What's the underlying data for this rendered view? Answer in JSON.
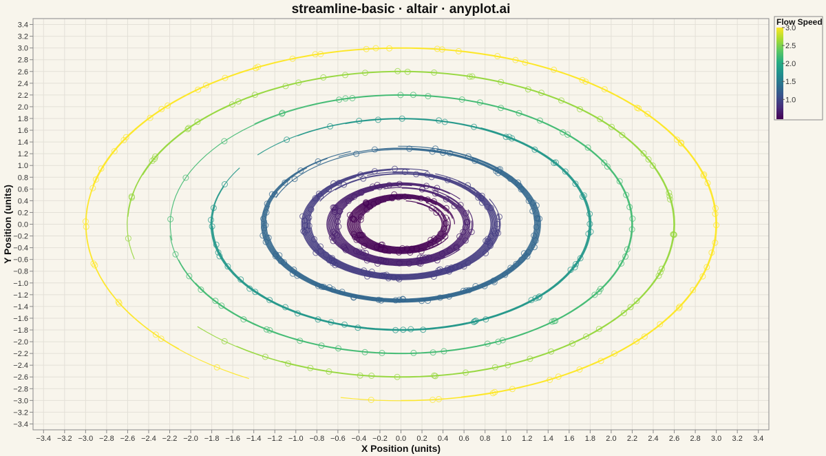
{
  "chart_data": {
    "type": "line",
    "title": "streamline-basic · altair · anyplot.ai",
    "xlabel": "X Position (units)",
    "ylabel": "Y Position (units)",
    "xlim": [
      -3.5,
      3.5
    ],
    "ylim": [
      -3.5,
      3.5
    ],
    "x_ticks": [
      -3.4,
      -3.2,
      -3.0,
      -2.8,
      -2.6,
      -2.4,
      -2.2,
      -2.0,
      -1.8,
      -1.6,
      -1.4,
      -1.2,
      -1.0,
      -0.8,
      -0.6,
      -0.4,
      -0.2,
      0.0,
      0.2,
      0.4,
      0.6,
      0.8,
      1.0,
      1.2,
      1.4,
      1.6,
      1.8,
      2.0,
      2.2,
      2.4,
      2.6,
      2.8,
      3.0,
      3.2,
      3.4
    ],
    "y_ticks": [
      -3.4,
      -3.2,
      -3.0,
      -2.8,
      -2.6,
      -2.4,
      -2.2,
      -2.0,
      -1.8,
      -1.6,
      -1.4,
      -1.2,
      -1.0,
      -0.8,
      -0.6,
      -0.4,
      -0.2,
      0.0,
      0.2,
      0.4,
      0.6,
      0.8,
      1.0,
      1.2,
      1.4,
      1.6,
      1.8,
      2.0,
      2.2,
      2.4,
      2.6,
      2.8,
      3.0,
      3.2,
      3.4
    ],
    "grid": true,
    "color_encoding": "flow speed (sqrt(x^2 + y^2))",
    "colorscale": "viridis",
    "colorscale_stops": [
      "#440154",
      "#472c7a",
      "#3b518b",
      "#2c718e",
      "#21908d",
      "#27ad81",
      "#5cc863",
      "#aadc32",
      "#fde725"
    ],
    "series": [
      {
        "radius": 0.45,
        "speed": 0.45,
        "strands": 13,
        "spacing": 0.01
      },
      {
        "radius": 0.65,
        "speed": 0.65,
        "strands": 12,
        "spacing": 0.01
      },
      {
        "radius": 0.9,
        "speed": 0.9,
        "strands": 11,
        "spacing": 0.009
      },
      {
        "radius": 1.3,
        "speed": 1.3,
        "strands": 8,
        "spacing": 0.008
      },
      {
        "radius": 1.8,
        "speed": 1.8,
        "strands": 4,
        "spacing": 0.006
      },
      {
        "radius": 2.2,
        "speed": 2.2,
        "strands": 3,
        "spacing": 0.005
      },
      {
        "radius": 2.6,
        "speed": 2.6,
        "strands": 3,
        "spacing": 0.005
      },
      {
        "radius": 3.0,
        "speed": 3.0,
        "strands": 3,
        "spacing": 0.005
      }
    ],
    "marker_style": "open circle along streamlines",
    "legend": {
      "title": "Flow Speed",
      "position": "top-right",
      "range": [
        0.45,
        3.0
      ],
      "labels": [
        "3.0",
        "2.5",
        "2.0",
        "1.5",
        "1.0"
      ],
      "values": [
        3.0,
        2.5,
        2.0,
        1.5,
        1.0
      ]
    }
  },
  "colors": {
    "background": "#f8f5ec",
    "grid": "#e3e0d7",
    "plot_border": "#888888"
  }
}
